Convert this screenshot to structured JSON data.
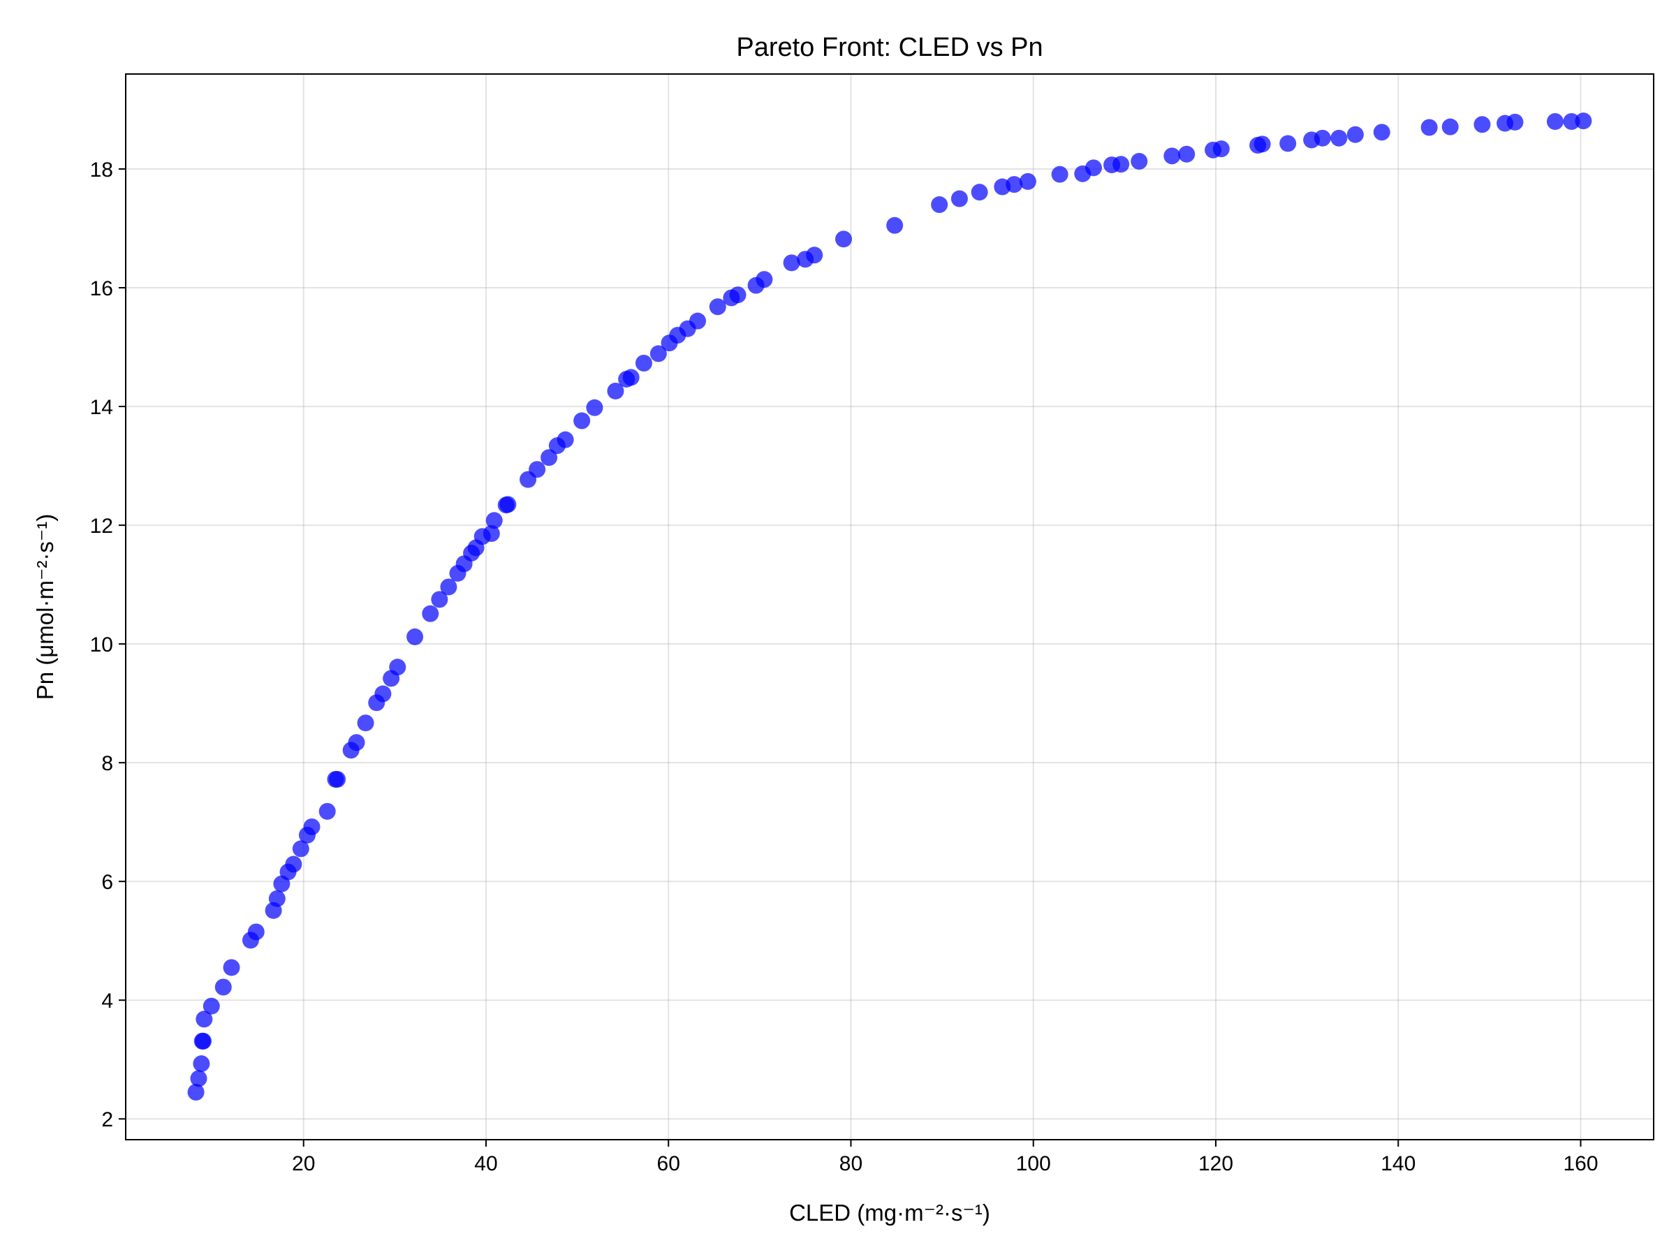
{
  "chart_data": {
    "type": "scatter",
    "title": "Pareto Front: CLED vs Pn",
    "xlabel": "CLED (mg·m⁻²·s⁻¹)",
    "ylabel": "Pn (μmol·m⁻²·s⁻¹)",
    "xlim": [
      0.5,
      168
    ],
    "ylim": [
      1.65,
      19.6
    ],
    "xticks": [
      20,
      40,
      60,
      80,
      100,
      120,
      140,
      160
    ],
    "yticks": [
      2,
      4,
      6,
      8,
      10,
      12,
      14,
      16,
      18
    ],
    "grid": true,
    "marker_color": "#0000ff",
    "marker_alpha": 0.7,
    "series": [
      {
        "points": [
          [
            8.2,
            2.45
          ],
          [
            8.5,
            2.68
          ],
          [
            8.8,
            2.93
          ],
          [
            8.9,
            3.31
          ],
          [
            9.0,
            3.31
          ],
          [
            9.1,
            3.68
          ],
          [
            9.9,
            3.9
          ],
          [
            11.2,
            4.22
          ],
          [
            12.1,
            4.55
          ],
          [
            14.2,
            5.01
          ],
          [
            14.8,
            5.15
          ],
          [
            16.7,
            5.51
          ],
          [
            17.1,
            5.71
          ],
          [
            17.6,
            5.96
          ],
          [
            18.3,
            6.16
          ],
          [
            18.9,
            6.29
          ],
          [
            19.7,
            6.55
          ],
          [
            20.4,
            6.78
          ],
          [
            20.9,
            6.92
          ],
          [
            22.6,
            7.18
          ],
          [
            23.5,
            7.72
          ],
          [
            23.7,
            7.72
          ],
          [
            25.2,
            8.21
          ],
          [
            25.8,
            8.34
          ],
          [
            26.8,
            8.67
          ],
          [
            28.0,
            9.01
          ],
          [
            28.7,
            9.16
          ],
          [
            29.6,
            9.42
          ],
          [
            30.3,
            9.61
          ],
          [
            32.2,
            10.12
          ],
          [
            33.9,
            10.51
          ],
          [
            34.9,
            10.75
          ],
          [
            35.9,
            10.96
          ],
          [
            36.9,
            11.19
          ],
          [
            37.6,
            11.35
          ],
          [
            38.4,
            11.53
          ],
          [
            38.9,
            11.62
          ],
          [
            39.6,
            11.81
          ],
          [
            40.6,
            11.86
          ],
          [
            40.9,
            12.08
          ],
          [
            42.2,
            12.34
          ],
          [
            42.4,
            12.35
          ],
          [
            44.6,
            12.77
          ],
          [
            45.6,
            12.94
          ],
          [
            46.9,
            13.14
          ],
          [
            47.8,
            13.34
          ],
          [
            48.7,
            13.44
          ],
          [
            50.5,
            13.76
          ],
          [
            51.9,
            13.98
          ],
          [
            54.2,
            14.26
          ],
          [
            55.4,
            14.46
          ],
          [
            55.9,
            14.49
          ],
          [
            57.3,
            14.73
          ],
          [
            58.9,
            14.89
          ],
          [
            60.1,
            15.07
          ],
          [
            61.0,
            15.2
          ],
          [
            62.1,
            15.31
          ],
          [
            63.2,
            15.44
          ],
          [
            65.4,
            15.68
          ],
          [
            66.9,
            15.83
          ],
          [
            67.6,
            15.88
          ],
          [
            69.6,
            16.04
          ],
          [
            70.5,
            16.14
          ],
          [
            73.5,
            16.42
          ],
          [
            75.0,
            16.48
          ],
          [
            76.0,
            16.55
          ],
          [
            79.2,
            16.82
          ],
          [
            84.8,
            17.05
          ],
          [
            89.7,
            17.4
          ],
          [
            91.9,
            17.5
          ],
          [
            94.1,
            17.61
          ],
          [
            96.6,
            17.7
          ],
          [
            97.9,
            17.74
          ],
          [
            99.4,
            17.79
          ],
          [
            102.9,
            17.91
          ],
          [
            105.4,
            17.92
          ],
          [
            106.6,
            18.02
          ],
          [
            108.6,
            18.07
          ],
          [
            109.6,
            18.08
          ],
          [
            111.6,
            18.13
          ],
          [
            115.2,
            18.22
          ],
          [
            116.8,
            18.25
          ],
          [
            119.7,
            18.32
          ],
          [
            120.6,
            18.34
          ],
          [
            124.6,
            18.4
          ],
          [
            125.1,
            18.42
          ],
          [
            127.9,
            18.43
          ],
          [
            130.5,
            18.49
          ],
          [
            131.7,
            18.52
          ],
          [
            133.5,
            18.52
          ],
          [
            135.3,
            18.58
          ],
          [
            138.2,
            18.62
          ],
          [
            143.4,
            18.7
          ],
          [
            145.7,
            18.71
          ],
          [
            149.2,
            18.75
          ],
          [
            151.7,
            18.77
          ],
          [
            152.8,
            18.79
          ],
          [
            157.2,
            18.8
          ],
          [
            159.0,
            18.8
          ],
          [
            160.3,
            18.81
          ]
        ]
      }
    ]
  }
}
